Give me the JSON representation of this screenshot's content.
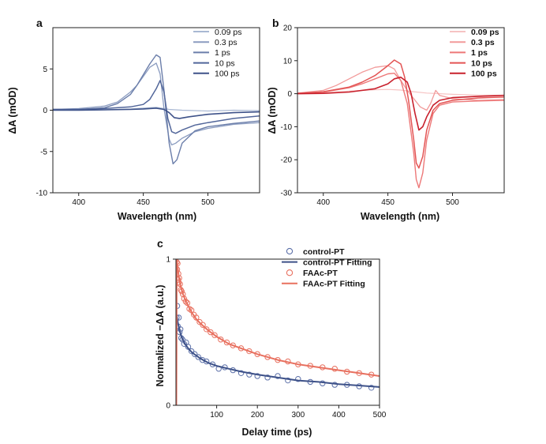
{
  "chart_data": [
    {
      "panel": "a",
      "type": "line",
      "xlabel": "Wavelength (nm)",
      "ylabel": "ΔA (mOD)",
      "xlim": [
        380,
        540
      ],
      "ylim": [
        -10,
        10
      ],
      "xticks": [
        400,
        450,
        500
      ],
      "yticks": [
        -10,
        -5,
        0,
        5
      ],
      "legend_position": "top-right",
      "grid": false,
      "series": [
        {
          "name": "0.09 ps",
          "color": "#a9b8d3",
          "width": 1.2,
          "x": [
            380,
            400,
            420,
            440,
            450,
            460,
            470,
            480,
            500,
            520,
            540
          ],
          "y": [
            0.0,
            0.1,
            0.05,
            0.15,
            0.25,
            0.35,
            0.1,
            0.0,
            -0.1,
            0.0,
            -0.05
          ]
        },
        {
          "name": "0.3 ps",
          "color": "#8b9cc0",
          "width": 1.3,
          "x": [
            380,
            400,
            420,
            430,
            440,
            445,
            450,
            455,
            460,
            463,
            466,
            470,
            472,
            475,
            480,
            490,
            500,
            520,
            540
          ],
          "y": [
            0.1,
            0.2,
            0.5,
            1.0,
            2.2,
            3.0,
            4.1,
            5.2,
            5.7,
            4.4,
            0.2,
            -3.5,
            -4.2,
            -4.0,
            -3.4,
            -2.6,
            -2.2,
            -1.7,
            -1.5
          ]
        },
        {
          "name": "1 ps",
          "color": "#6b7eaa",
          "width": 1.4,
          "x": [
            380,
            400,
            420,
            430,
            440,
            445,
            450,
            455,
            460,
            463,
            466,
            470,
            473,
            476,
            480,
            490,
            500,
            520,
            540
          ],
          "y": [
            0.1,
            0.1,
            0.3,
            0.8,
            1.9,
            3.0,
            4.3,
            5.6,
            6.7,
            6.4,
            2.5,
            -4.0,
            -6.5,
            -6.0,
            -4.0,
            -2.5,
            -2.0,
            -1.6,
            -1.3
          ]
        },
        {
          "name": "10 ps",
          "color": "#52669a",
          "width": 1.5,
          "x": [
            380,
            400,
            420,
            440,
            450,
            455,
            460,
            463,
            466,
            469,
            472,
            475,
            480,
            490,
            500,
            520,
            540
          ],
          "y": [
            0.1,
            0.1,
            0.2,
            0.4,
            0.7,
            1.3,
            2.6,
            3.6,
            2.2,
            -1.0,
            -2.6,
            -2.8,
            -2.4,
            -1.8,
            -1.5,
            -1.0,
            -0.7
          ]
        },
        {
          "name": "100 ps",
          "color": "#3e5289",
          "width": 1.6,
          "x": [
            380,
            400,
            420,
            440,
            450,
            460,
            466,
            470,
            474,
            478,
            485,
            500,
            520,
            540
          ],
          "y": [
            0.0,
            0.0,
            0.05,
            0.1,
            0.15,
            0.25,
            0.1,
            -0.3,
            -0.9,
            -1.0,
            -0.8,
            -0.5,
            -0.3,
            -0.2
          ]
        }
      ]
    },
    {
      "panel": "b",
      "type": "line",
      "xlabel": "Wavelength (nm)",
      "ylabel": "ΔA (mOD)",
      "xlim": [
        380,
        540
      ],
      "ylim": [
        -30,
        20
      ],
      "xticks": [
        400,
        450,
        500
      ],
      "yticks": [
        -30,
        -20,
        -10,
        0,
        10,
        20
      ],
      "legend_position": "top-right",
      "grid": false,
      "series": [
        {
          "name": "0.09 ps",
          "color": "#f6c3c3",
          "width": 1.2,
          "x": [
            380,
            400,
            420,
            440,
            450,
            460,
            470,
            480,
            500,
            520,
            540
          ],
          "y": [
            0.0,
            0.3,
            0.8,
            1.2,
            1.3,
            1.1,
            0.6,
            0.2,
            -0.2,
            -0.4,
            -0.5
          ]
        },
        {
          "name": "0.3 ps",
          "color": "#f29a9a",
          "width": 1.3,
          "x": [
            380,
            400,
            410,
            420,
            430,
            440,
            450,
            455,
            460,
            465,
            470,
            475,
            480,
            483,
            487,
            490,
            500,
            520,
            540
          ],
          "y": [
            0.2,
            1.0,
            2.5,
            4.5,
            6.5,
            8.0,
            8.5,
            7.5,
            4.0,
            1.0,
            -1.5,
            -4.0,
            -5.0,
            -3.0,
            1.0,
            -0.5,
            -1.5,
            -2.0,
            -1.8
          ]
        },
        {
          "name": "1 ps",
          "color": "#ed7878",
          "width": 1.4,
          "x": [
            380,
            400,
            420,
            430,
            440,
            450,
            455,
            460,
            465,
            470,
            472,
            474,
            477,
            480,
            485,
            490,
            500,
            520,
            540
          ],
          "y": [
            0.1,
            0.5,
            1.8,
            3.0,
            4.5,
            6.0,
            6.2,
            4.0,
            -3.0,
            -18.0,
            -26.0,
            -28.5,
            -24.0,
            -14.0,
            -6.0,
            -3.5,
            -2.5,
            -2.2,
            -2.0
          ]
        },
        {
          "name": "10 ps",
          "color": "#e35555",
          "width": 1.5,
          "x": [
            380,
            400,
            420,
            430,
            440,
            450,
            455,
            460,
            463,
            466,
            470,
            472,
            474,
            477,
            480,
            485,
            490,
            500,
            520,
            540
          ],
          "y": [
            0.1,
            0.6,
            2.0,
            3.5,
            5.5,
            8.5,
            10.2,
            9.0,
            5.0,
            -2.0,
            -14.0,
            -21.0,
            -22.5,
            -19.0,
            -11.0,
            -5.0,
            -3.0,
            -2.0,
            -1.3,
            -1.0
          ]
        },
        {
          "name": "100 ps",
          "color": "#c8202c",
          "width": 1.6,
          "x": [
            380,
            400,
            420,
            440,
            450,
            455,
            460,
            465,
            468,
            471,
            474,
            477,
            480,
            485,
            490,
            500,
            520,
            540
          ],
          "y": [
            0.0,
            0.1,
            0.5,
            1.5,
            3.0,
            4.5,
            5.0,
            3.5,
            0.0,
            -6.0,
            -11.0,
            -10.0,
            -7.0,
            -3.5,
            -2.0,
            -1.2,
            -0.8,
            -0.5
          ]
        }
      ]
    },
    {
      "panel": "c",
      "type": "scatter",
      "xlabel": "Delay time (ps)",
      "ylabel": "Normalized −ΔA (a.u.)",
      "xlim": [
        0,
        500
      ],
      "ylim": [
        0,
        1
      ],
      "xticks": [
        100,
        200,
        300,
        400,
        500
      ],
      "yticks": [
        0,
        1
      ],
      "legend_position": "top-right",
      "grid": false,
      "series": [
        {
          "name": "control-PT",
          "kind": "markers",
          "color": "#5b6fa8",
          "x": [
            2,
            3,
            5,
            7,
            9,
            11,
            13,
            16,
            20,
            25,
            30,
            38,
            46,
            55,
            65,
            75,
            90,
            105,
            120,
            140,
            160,
            180,
            200,
            225,
            250,
            275,
            300,
            330,
            360,
            390,
            420,
            450,
            480
          ],
          "y": [
            0.6,
            0.68,
            0.54,
            0.6,
            0.5,
            0.52,
            0.46,
            0.45,
            0.42,
            0.43,
            0.4,
            0.37,
            0.35,
            0.33,
            0.31,
            0.3,
            0.28,
            0.25,
            0.26,
            0.24,
            0.22,
            0.21,
            0.2,
            0.19,
            0.2,
            0.17,
            0.18,
            0.16,
            0.15,
            0.14,
            0.14,
            0.13,
            0.12
          ]
        },
        {
          "name": "control-PT Fitting",
          "kind": "line",
          "color": "#3e5289",
          "width": 2,
          "x": [
            2,
            5,
            10,
            15,
            20,
            30,
            40,
            50,
            60,
            80,
            100,
            130,
            160,
            200,
            250,
            300,
            350,
            400,
            450,
            500
          ],
          "y": [
            0.62,
            0.56,
            0.5,
            0.46,
            0.43,
            0.39,
            0.36,
            0.34,
            0.32,
            0.29,
            0.27,
            0.25,
            0.23,
            0.21,
            0.19,
            0.17,
            0.16,
            0.145,
            0.135,
            0.125
          ]
        },
        {
          "name": "FAAc-PT",
          "kind": "markers",
          "color": "#e8705f",
          "x": [
            2,
            3,
            4,
            5,
            6,
            7,
            8,
            10,
            12,
            14,
            17,
            20,
            24,
            28,
            33,
            38,
            44,
            50,
            58,
            66,
            75,
            85,
            95,
            110,
            125,
            140,
            160,
            180,
            200,
            225,
            250,
            275,
            300,
            330,
            360,
            390,
            420,
            450,
            480
          ],
          "y": [
            0.98,
            0.93,
            0.97,
            0.86,
            0.9,
            0.84,
            0.87,
            0.83,
            0.79,
            0.78,
            0.76,
            0.73,
            0.71,
            0.7,
            0.66,
            0.65,
            0.62,
            0.6,
            0.57,
            0.55,
            0.52,
            0.5,
            0.48,
            0.45,
            0.43,
            0.41,
            0.39,
            0.37,
            0.35,
            0.33,
            0.31,
            0.3,
            0.28,
            0.27,
            0.26,
            0.25,
            0.23,
            0.22,
            0.21
          ]
        },
        {
          "name": "FAAc-PT Fitting",
          "kind": "line",
          "color": "#e8705f",
          "width": 2,
          "x": [
            0,
            1,
            1.5,
            2,
            4,
            7,
            10,
            15,
            20,
            30,
            40,
            50,
            60,
            80,
            100,
            130,
            160,
            200,
            250,
            300,
            350,
            400,
            450,
            500
          ],
          "y": [
            0.0,
            0.0,
            0.5,
            1.0,
            0.95,
            0.88,
            0.83,
            0.78,
            0.74,
            0.68,
            0.63,
            0.59,
            0.56,
            0.51,
            0.47,
            0.42,
            0.39,
            0.35,
            0.31,
            0.28,
            0.26,
            0.24,
            0.22,
            0.2
          ]
        }
      ]
    }
  ]
}
